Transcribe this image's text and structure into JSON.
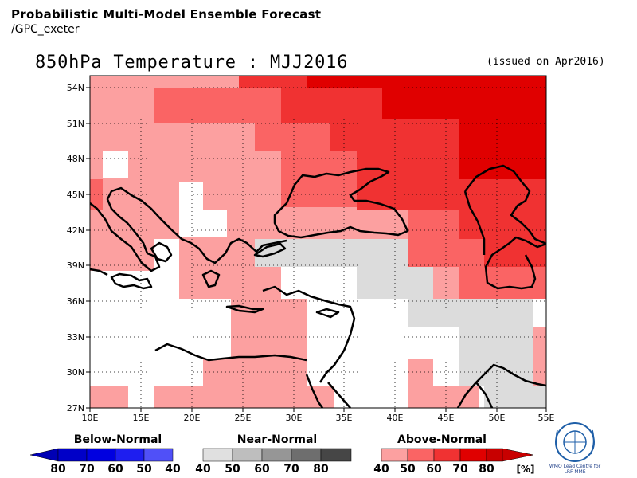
{
  "header": {
    "title": "Probabilistic Multi-Model Ensemble Forecast",
    "subtitle": "/GPC_exeter"
  },
  "map": {
    "title": "850hPa Temperature : MJJ2016",
    "issued": "(issued on Apr2016)",
    "lon_labels": [
      "10E",
      "15E",
      "20E",
      "25E",
      "30E",
      "35E",
      "40E",
      "45E",
      "50E",
      "55E"
    ],
    "lat_labels": [
      "54N",
      "51N",
      "48N",
      "45N",
      "42N",
      "39N",
      "36N",
      "33N",
      "30N",
      "27N"
    ]
  },
  "legend": {
    "below": {
      "label": "Below-Normal",
      "ticks": [
        "80",
        "70",
        "60",
        "50",
        "40"
      ],
      "colors": [
        "#0000c8",
        "#0000e0",
        "#1e1ef0",
        "#5050f8",
        "#a0a0fc"
      ]
    },
    "near": {
      "label": "Near-Normal",
      "ticks": [
        "40",
        "50",
        "60",
        "70",
        "80"
      ],
      "colors": [
        "#e0e0e0",
        "#bebebe",
        "#969696",
        "#6e6e6e",
        "#464646"
      ]
    },
    "above": {
      "label": "Above-Normal",
      "ticks": [
        "40",
        "50",
        "60",
        "70",
        "80"
      ],
      "unit": "[%]",
      "colors": [
        "#fca0a0",
        "#fa6464",
        "#f03232",
        "#e00000",
        "#c80000"
      ]
    }
  },
  "logo": {
    "line1": "WMO Lead Centre for",
    "line2": "LRF MME"
  }
}
